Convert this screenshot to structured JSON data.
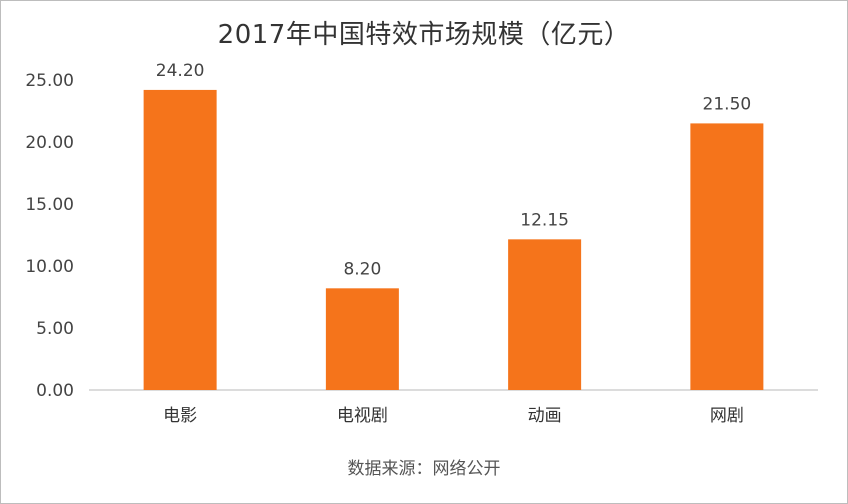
{
  "title": "2017年中国特效市场规模（亿元）",
  "source": "数据来源：网络公开",
  "chart_data": {
    "type": "bar",
    "categories": [
      "电影",
      "电视剧",
      "动画",
      "网剧"
    ],
    "values": [
      24.2,
      8.2,
      12.15,
      21.5
    ],
    "value_labels": [
      "24.20",
      "8.20",
      "12.15",
      "21.50"
    ],
    "yticks": [
      "0.00",
      "5.00",
      "10.00",
      "15.00",
      "20.00",
      "25.00"
    ],
    "ylim": [
      0,
      25
    ],
    "grid": false,
    "legend": "none",
    "bar_color": "#f5741b",
    "title": "2017年中国特效市场规模（亿元）"
  }
}
